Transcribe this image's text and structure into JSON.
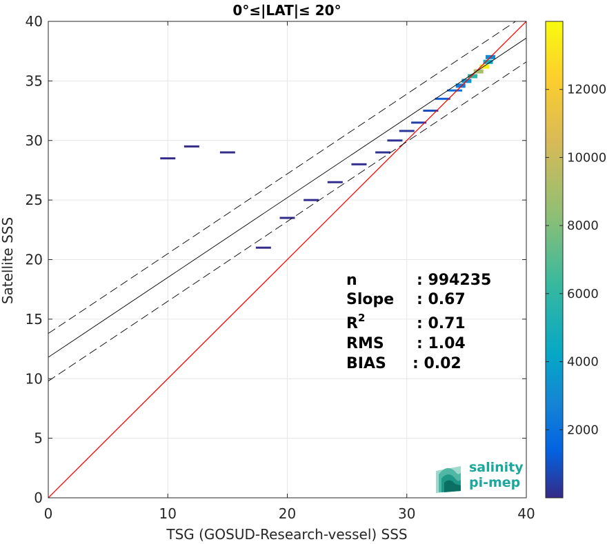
{
  "chart_data": {
    "type": "heatmap",
    "title": "0°≤|LAT|≤ 20°",
    "xlabel": "TSG (GOSUD-Research-vessel) SSS",
    "ylabel": "Satellite SSS",
    "xlim": [
      0,
      40
    ],
    "ylim": [
      0,
      40
    ],
    "xticks": [
      0,
      10,
      20,
      30,
      40
    ],
    "yticks": [
      0,
      5,
      10,
      15,
      20,
      25,
      30,
      35,
      40
    ],
    "grid": true,
    "colorbar": {
      "range": [
        0,
        14000
      ],
      "ticks": [
        2000,
        4000,
        6000,
        8000,
        10000,
        12000
      ],
      "colormap": "parula"
    },
    "lines": [
      {
        "kind": "identity",
        "color": "#ff0000",
        "x": [
          0,
          40
        ],
        "y": [
          0,
          40
        ]
      },
      {
        "kind": "regression",
        "color": "#000000",
        "x": [
          0,
          40
        ],
        "y": [
          11.8,
          38.6
        ]
      },
      {
        "kind": "upper-bound",
        "color": "#000000",
        "style": "dashed",
        "x": [
          0,
          40
        ],
        "y": [
          13.8,
          40.6
        ]
      },
      {
        "kind": "lower-bound",
        "color": "#000000",
        "style": "dashed",
        "x": [
          0,
          40
        ],
        "y": [
          9.8,
          36.6
        ]
      }
    ],
    "density_cells": [
      {
        "x": 36.5,
        "y": 36.2,
        "count": 13500
      },
      {
        "x": 36.0,
        "y": 35.8,
        "count": 9000
      },
      {
        "x": 35.5,
        "y": 35.4,
        "count": 6000
      },
      {
        "x": 35.0,
        "y": 35.0,
        "count": 3500
      },
      {
        "x": 34.5,
        "y": 34.6,
        "count": 2500
      },
      {
        "x": 36.8,
        "y": 36.6,
        "count": 4500
      },
      {
        "x": 37.0,
        "y": 37.0,
        "count": 3000
      },
      {
        "x": 34.0,
        "y": 34.2,
        "count": 1800
      },
      {
        "x": 33.0,
        "y": 33.5,
        "count": 1200
      },
      {
        "x": 32.0,
        "y": 32.5,
        "count": 800
      },
      {
        "x": 31.0,
        "y": 31.5,
        "count": 500
      },
      {
        "x": 30.0,
        "y": 30.8,
        "count": 300
      },
      {
        "x": 29.0,
        "y": 30.0,
        "count": 200
      },
      {
        "x": 28.0,
        "y": 29.0,
        "count": 150
      },
      {
        "x": 26.0,
        "y": 28.0,
        "count": 100
      },
      {
        "x": 24.0,
        "y": 26.5,
        "count": 80
      },
      {
        "x": 22.0,
        "y": 25.0,
        "count": 60
      },
      {
        "x": 20.0,
        "y": 23.5,
        "count": 50
      },
      {
        "x": 18.0,
        "y": 21.0,
        "count": 40
      },
      {
        "x": 15.0,
        "y": 29.0,
        "count": 30
      },
      {
        "x": 12.0,
        "y": 29.5,
        "count": 30
      },
      {
        "x": 10.0,
        "y": 28.5,
        "count": 25
      }
    ],
    "stats": [
      {
        "label": "n",
        "value": ": 994235"
      },
      {
        "label": "Slope",
        "value": ": 0.67"
      },
      {
        "label": "R2",
        "value": ": 0.71"
      },
      {
        "label": "RMS",
        "value": ": 1.04"
      },
      {
        "label": "BIAS",
        "value": ": 0.02"
      }
    ]
  },
  "logo": {
    "line1": "salinity",
    "line2": "pi-mep"
  },
  "colors": {
    "identity_line": "#ff0000",
    "regression_line": "#000000",
    "grid": "#e6e6e6",
    "logo": "#1aa89a"
  }
}
